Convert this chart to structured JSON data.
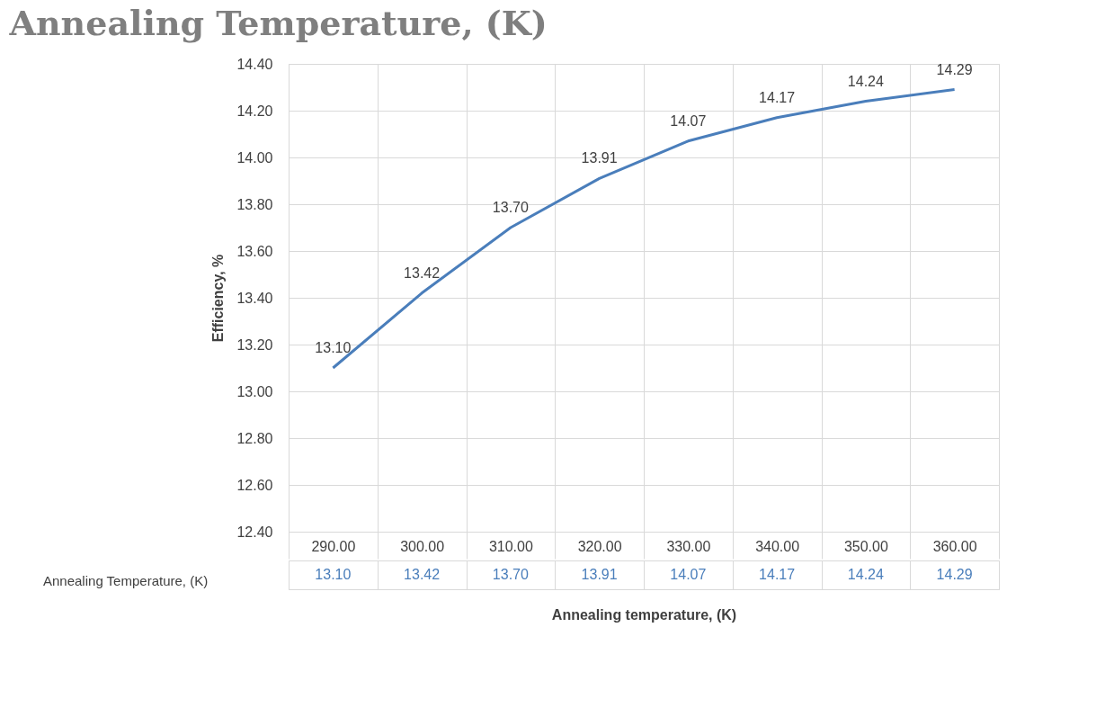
{
  "chart_data": {
    "type": "line",
    "title": "Annealing Temperature, (K)",
    "xlabel": "Annealing temperature, (K)",
    "ylabel": "Efficiency, %",
    "categories": [
      "290.00",
      "300.00",
      "310.00",
      "320.00",
      "330.00",
      "340.00",
      "350.00",
      "360.00"
    ],
    "series": [
      {
        "name": "Annealing Temperature, (K)",
        "color": "#4a7ebb",
        "values": [
          13.1,
          13.42,
          13.7,
          13.91,
          14.07,
          14.17,
          14.24,
          14.29
        ],
        "value_labels": [
          "13.10",
          "13.42",
          "13.70",
          "13.91",
          "14.07",
          "14.17",
          "14.24",
          "14.29"
        ]
      }
    ],
    "ylim": [
      12.4,
      14.4
    ],
    "yticks": [
      {
        "value": 12.4,
        "label": "12.40"
      },
      {
        "value": 12.6,
        "label": "12.60"
      },
      {
        "value": 12.8,
        "label": "12.80"
      },
      {
        "value": 13.0,
        "label": "13.00"
      },
      {
        "value": 13.2,
        "label": "13.20"
      },
      {
        "value": 13.4,
        "label": "13.40"
      },
      {
        "value": 13.6,
        "label": "13.60"
      },
      {
        "value": 13.8,
        "label": "13.80"
      },
      {
        "value": 14.0,
        "label": "14.00"
      },
      {
        "value": 14.2,
        "label": "14.20"
      },
      {
        "value": 14.4,
        "label": "14.40"
      }
    ],
    "grid": true,
    "legend": "bottom",
    "line_style": "solid"
  }
}
